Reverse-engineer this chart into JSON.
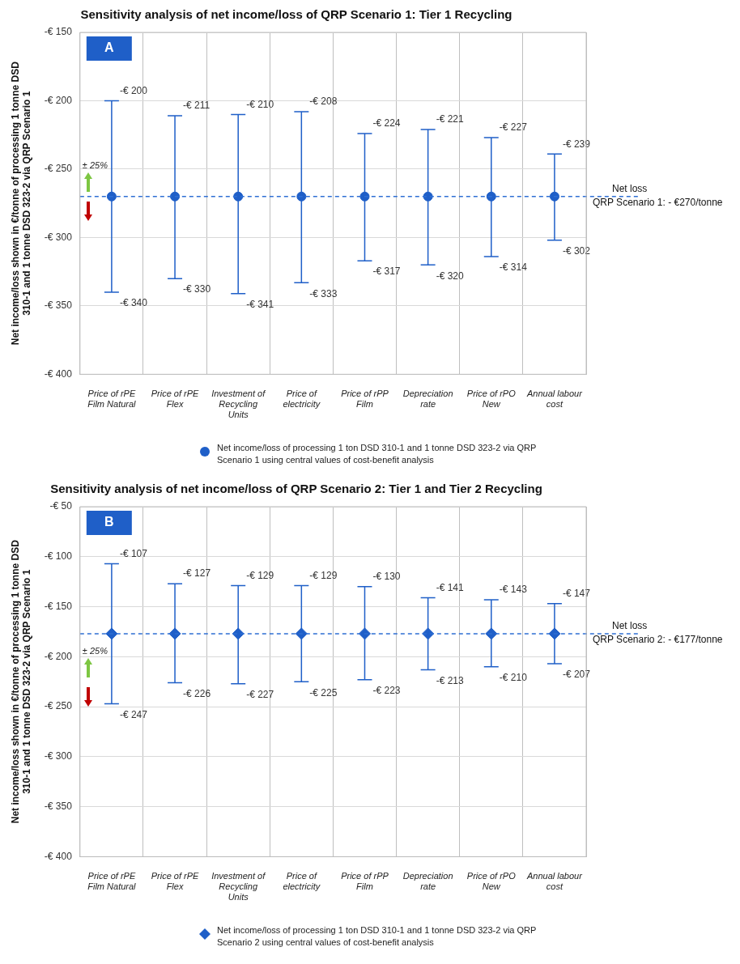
{
  "chart_data": [
    {
      "type": "scatter",
      "title": "Sensitivity analysis of net income/loss of QRP Scenario 1: Tier 1 Recycling",
      "ylabel": "Net income/loss shown in €/tonne of processing 1 tonne DSD 310-1 and 1 tonne DSD 323-2 via QRP Scenario 1",
      "categories": [
        "Price of rPE Film Natural",
        "Price of rPE Flex",
        "Investment of Recycling Units",
        "Price of electricity",
        "Price of rPP Film",
        "Depreciation rate",
        "Price of rPO New",
        "Annual labour cost"
      ],
      "series": [
        {
          "name": "Net income/loss of processing 1 ton DSD 310-1 and 1 tonne DSD 323-2 via QRP Scenario 1 using central values of cost-benefit analysis",
          "color": "#1f5fc8",
          "values": [
            -270,
            -270,
            -270,
            -270,
            -270,
            -270,
            -270,
            -270
          ],
          "errors": [
            [
              -340,
              -200
            ],
            [
              -330,
              -211
            ],
            [
              -341,
              -210
            ],
            [
              -333,
              -208
            ],
            [
              -317,
              -224
            ],
            [
              -320,
              -221
            ],
            [
              -314,
              -227
            ],
            [
              -302,
              -239
            ]
          ]
        }
      ],
      "ylim": [
        -400,
        -150
      ],
      "yticks": [
        {
          "value": -400,
          "label": "-€ 400"
        },
        {
          "value": -350,
          "label": "-€ 350"
        },
        {
          "value": -300,
          "label": "-€ 300"
        },
        {
          "value": -250,
          "label": "-€ 250"
        },
        {
          "value": -200,
          "label": "-€ 200"
        },
        {
          "value": -150,
          "label": "-€ 150"
        }
      ],
      "grid": true,
      "legend": "bottom",
      "marker": "circle",
      "ref_lines": [
        {
          "axis": "y",
          "value": -270,
          "label": "Net loss\nQRP Scenario 1: - €270/tonne",
          "color": "#2e6fd4",
          "line_style": "dashed"
        }
      ],
      "annotations": [
        "A",
        "± 25%",
        {
          "text": "-€ 200",
          "x": "Price of rPE Film Natural",
          "y": -200
        },
        {
          "text": "-€ 340",
          "x": "Price of rPE Film Natural",
          "y": -340
        },
        {
          "text": "-€ 211",
          "x": "Price of rPE Flex",
          "y": -211
        },
        {
          "text": "-€ 330",
          "x": "Price of rPE Flex",
          "y": -330
        },
        {
          "text": "-€ 210",
          "x": "Investment of Recycling Units",
          "y": -210
        },
        {
          "text": "-€ 341",
          "x": "Investment of Recycling Units",
          "y": -341
        },
        {
          "text": "-€ 208",
          "x": "Price of electricity",
          "y": -208
        },
        {
          "text": "-€ 333",
          "x": "Price of electricity",
          "y": -333
        },
        {
          "text": "-€ 224",
          "x": "Price of rPP Film",
          "y": -224
        },
        {
          "text": "-€ 317",
          "x": "Price of rPP Film",
          "y": -317
        },
        {
          "text": "-€ 221",
          "x": "Depreciation rate",
          "y": -221
        },
        {
          "text": "-€ 320",
          "x": "Depreciation rate",
          "y": -320
        },
        {
          "text": "-€ 227",
          "x": "Price of rPO New",
          "y": -227
        },
        {
          "text": "-€ 314",
          "x": "Price of rPO New",
          "y": -314
        },
        {
          "text": "-€ 239",
          "x": "Annual labour cost",
          "y": -239
        },
        {
          "text": "-€ 302",
          "x": "Annual labour cost",
          "y": -302
        }
      ]
    },
    {
      "type": "scatter",
      "title": "Sensitivity analysis of net income/loss of QRP Scenario 2: Tier 1 and Tier 2 Recycling",
      "ylabel": "Net income/loss shown in €/tonne of processing 1 tonne DSD 310-1 and 1 tonne DSD 323-2 via QRP Scenario 1",
      "categories": [
        "Price of rPE Film Natural",
        "Price of rPE Flex",
        "Investment of Recycling Units",
        "Price of electricity",
        "Price of rPP Film",
        "Depreciation rate",
        "Price of rPO New",
        "Annual labour cost"
      ],
      "series": [
        {
          "name": "Net income/loss of processing 1 ton DSD 310-1 and 1 tonne DSD 323-2 via QRP Scenario 2 using central values of cost-benefit analysis",
          "color": "#1f5fc8",
          "values": [
            -177,
            -177,
            -177,
            -177,
            -177,
            -177,
            -177,
            -177
          ],
          "errors": [
            [
              -247,
              -107
            ],
            [
              -226,
              -127
            ],
            [
              -227,
              -129
            ],
            [
              -225,
              -129
            ],
            [
              -223,
              -130
            ],
            [
              -213,
              -141
            ],
            [
              -210,
              -143
            ],
            [
              -207,
              -147
            ]
          ]
        }
      ],
      "ylim": [
        -400,
        -50
      ],
      "yticks": [
        {
          "value": -400,
          "label": "-€ 400"
        },
        {
          "value": -350,
          "label": "-€ 350"
        },
        {
          "value": -300,
          "label": "-€ 300"
        },
        {
          "value": -250,
          "label": "-€ 250"
        },
        {
          "value": -200,
          "label": "-€ 200"
        },
        {
          "value": -150,
          "label": "-€ 150"
        },
        {
          "value": -100,
          "label": "-€ 100"
        },
        {
          "value": -50,
          "label": "-€ 50"
        }
      ],
      "grid": true,
      "legend": "bottom",
      "marker": "diamond",
      "ref_lines": [
        {
          "axis": "y",
          "value": -177,
          "label": "Net loss\nQRP Scenario 2: - €177/tonne",
          "color": "#2e6fd4",
          "line_style": "dashed"
        }
      ],
      "annotations": [
        "B",
        "± 25%",
        {
          "text": "-€ 107",
          "x": "Price of rPE Film Natural",
          "y": -107
        },
        {
          "text": "-€ 247",
          "x": "Price of rPE Film Natural",
          "y": -247
        },
        {
          "text": "-€ 127",
          "x": "Price of rPE Flex",
          "y": -127
        },
        {
          "text": "-€ 226",
          "x": "Price of rPE Flex",
          "y": -226
        },
        {
          "text": "-€ 129",
          "x": "Investment of Recycling Units",
          "y": -129
        },
        {
          "text": "-€ 227",
          "x": "Investment of Recycling Units",
          "y": -227
        },
        {
          "text": "-€ 129",
          "x": "Price of electricity",
          "y": -129
        },
        {
          "text": "-€ 225",
          "x": "Price of electricity",
          "y": -225
        },
        {
          "text": "-€ 130",
          "x": "Price of rPP Film",
          "y": -130
        },
        {
          "text": "-€ 223",
          "x": "Price of rPP Film",
          "y": -223
        },
        {
          "text": "-€ 141",
          "x": "Depreciation rate",
          "y": -141
        },
        {
          "text": "-€ 213",
          "x": "Depreciation rate",
          "y": -213
        },
        {
          "text": "-€ 143",
          "x": "Price of rPO New",
          "y": -143
        },
        {
          "text": "-€ 210",
          "x": "Price of rPO New",
          "y": -210
        },
        {
          "text": "-€ 147",
          "x": "Annual labour cost",
          "y": -147
        },
        {
          "text": "-€ 207",
          "x": "Annual labour cost",
          "y": -207
        }
      ]
    }
  ]
}
